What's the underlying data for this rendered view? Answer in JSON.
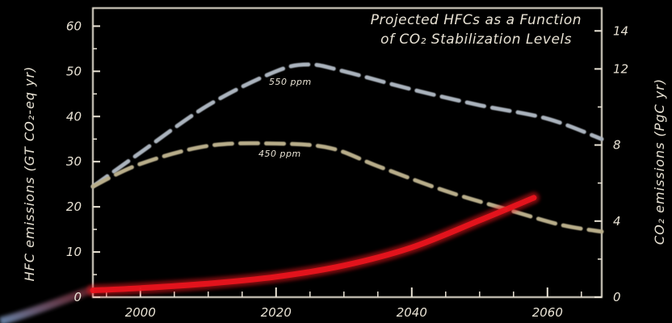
{
  "chart_data": {
    "type": "line",
    "title_lines": [
      "Projected HFCs as a Function",
      "of CO₂ Stabilization Levels"
    ],
    "ylabel_left": "HFC emissions (GT CO₂-eq yr)",
    "ylabel_right": "CO₂ emissions (PgC yr)",
    "x_ticks": [
      "2000",
      "2020",
      "2040",
      "2060"
    ],
    "x_tick_values": [
      2000,
      2020,
      2040,
      2060
    ],
    "y_left_ticks": [
      "0",
      "10",
      "20",
      "30",
      "40",
      "50",
      "60"
    ],
    "y_left_tick_values": [
      0,
      10,
      20,
      30,
      40,
      50,
      60
    ],
    "y_right_ticks": [
      "0",
      "4",
      "8",
      "12",
      "14"
    ],
    "y_right_tick_values": [
      0,
      4,
      8,
      12,
      14
    ],
    "xlim": [
      1993,
      2068
    ],
    "ylim_left": [
      0,
      64
    ],
    "ylim_right": [
      0,
      15.2
    ],
    "series": [
      {
        "name": "550 ppm",
        "axis": "left",
        "style": "dashed",
        "color": "#aab3bd",
        "x": [
          1993,
          2000,
          2010,
          2020,
          2025,
          2030,
          2040,
          2050,
          2060,
          2068
        ],
        "y": [
          24.5,
          32,
          42.5,
          50,
          51.5,
          50,
          46,
          42.5,
          39.5,
          35
        ]
      },
      {
        "name": "450 ppm",
        "axis": "left",
        "style": "dashed",
        "color": "#b8ad8a",
        "x": [
          1993,
          2000,
          2010,
          2020,
          2028,
          2035,
          2045,
          2055,
          2062,
          2068
        ],
        "y": [
          24.5,
          29.5,
          33.5,
          34,
          33,
          29,
          23.5,
          19,
          16,
          14.5
        ]
      },
      {
        "axis": "left",
        "style": "solid",
        "color": "#e8141e",
        "x": [
          1993,
          2000,
          2010,
          2020,
          2030,
          2040,
          2050,
          2058
        ],
        "y": [
          1.5,
          2,
          3,
          4.5,
          7,
          11,
          17,
          22
        ]
      }
    ],
    "grid": false,
    "colors": {
      "background": "#000000",
      "frame": "#e8e2d4",
      "text": "#e8e2d4"
    }
  }
}
